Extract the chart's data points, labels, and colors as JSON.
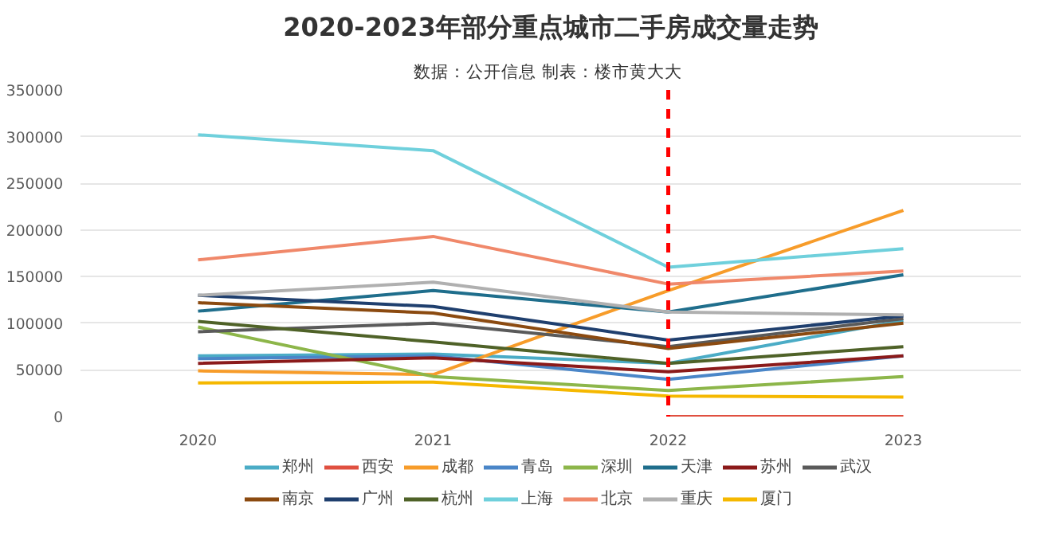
{
  "chart_data": {
    "type": "line",
    "title": "2020-2023年部分重点城市二手房成交量走势",
    "subtitle": "数据：公开信息  制表：楼市黄大大",
    "categories": [
      "2020",
      "2021",
      "2022",
      "2023"
    ],
    "ylim": [
      0,
      350000
    ],
    "yticks": [
      0,
      50000,
      100000,
      150000,
      200000,
      250000,
      300000,
      350000
    ],
    "grid": "y",
    "legend": "bottom",
    "line_style": "solid",
    "marker": "none",
    "ref_lines": [
      {
        "axis": "x",
        "value": "2022",
        "label": null,
        "color": "#ff0000",
        "line_style": "dashed"
      }
    ],
    "series": [
      {
        "name": "郑州",
        "color": "#4bacc6",
        "values": [
          65000,
          67000,
          57000,
          103000
        ]
      },
      {
        "name": "西安",
        "color": "#e05040",
        "values": [
          null,
          null,
          0,
          0
        ]
      },
      {
        "name": "成都",
        "color": "#f79c2a",
        "values": [
          49000,
          45000,
          135000,
          221000
        ]
      },
      {
        "name": "青岛",
        "color": "#4a86c8",
        "values": [
          62000,
          65000,
          40000,
          65000
        ]
      },
      {
        "name": "深圳",
        "color": "#8db64a",
        "values": [
          96000,
          43000,
          28000,
          43000
        ]
      },
      {
        "name": "天津",
        "color": "#1f6e8c",
        "values": [
          113000,
          135000,
          112000,
          152000
        ]
      },
      {
        "name": "苏州",
        "color": "#8b1a1a",
        "values": [
          57000,
          63000,
          48000,
          65000
        ]
      },
      {
        "name": "武汉",
        "color": "#5a5a5a",
        "values": [
          91000,
          100000,
          75000,
          105000
        ]
      },
      {
        "name": "南京",
        "color": "#8b4a10",
        "values": [
          122000,
          111000,
          73000,
          100000
        ]
      },
      {
        "name": "广州",
        "color": "#1f3f6e",
        "values": [
          130000,
          118000,
          82000,
          108000
        ]
      },
      {
        "name": "杭州",
        "color": "#4f6228",
        "values": [
          102000,
          80000,
          57000,
          75000
        ]
      },
      {
        "name": "上海",
        "color": "#6fd0dc",
        "values": [
          302000,
          285000,
          160000,
          180000
        ]
      },
      {
        "name": "北京",
        "color": "#f0886a",
        "values": [
          168000,
          193000,
          142000,
          156000
        ]
      },
      {
        "name": "重庆",
        "color": "#b0b0b0",
        "values": [
          130000,
          144000,
          112000,
          109000
        ]
      },
      {
        "name": "厦门",
        "color": "#f5b800",
        "values": [
          36000,
          37000,
          22000,
          21000
        ]
      }
    ]
  }
}
